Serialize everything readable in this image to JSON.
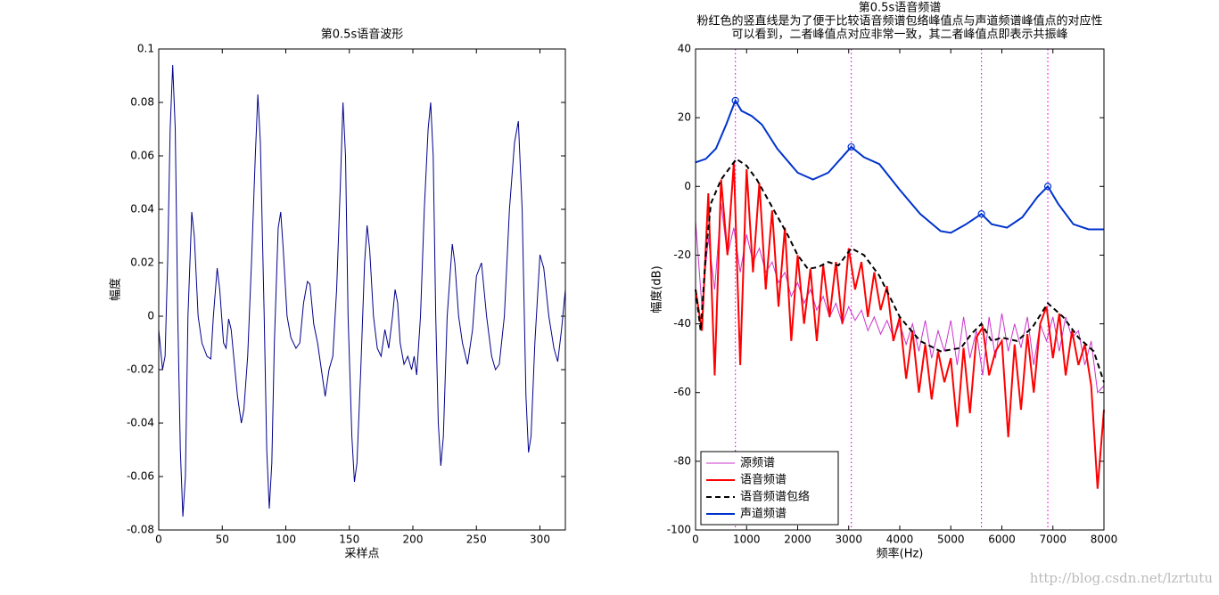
{
  "chart_data": [
    {
      "type": "line",
      "title": [
        "第0.5s语音波形"
      ],
      "xlabel": "采样点",
      "ylabel": "幅度",
      "xlim": [
        0,
        320
      ],
      "xticks": [
        0,
        50,
        100,
        150,
        200,
        250,
        300
      ],
      "ylim": [
        -0.08,
        0.1
      ],
      "yticks": [
        -0.08,
        -0.06,
        -0.04,
        -0.02,
        0,
        0.02,
        0.04,
        0.06,
        0.08,
        0.1
      ],
      "series": [
        {
          "color": "#00008b",
          "width": 1,
          "x": [
            0,
            3,
            5,
            7,
            9,
            11,
            13,
            15,
            17,
            19,
            21,
            23,
            26,
            28,
            31,
            34,
            38,
            41,
            43,
            46,
            48,
            51,
            53,
            55,
            57,
            59,
            62,
            65,
            67,
            70,
            73,
            76,
            78,
            80,
            83,
            85,
            87,
            89,
            91,
            94,
            96,
            98,
            101,
            104,
            108,
            111,
            114,
            117,
            119,
            122,
            125,
            128,
            131,
            134,
            137,
            140,
            143,
            145,
            147,
            149,
            152,
            154,
            156,
            159,
            162,
            164,
            166,
            169,
            172,
            175,
            178,
            181,
            184,
            186,
            188,
            190,
            193,
            196,
            199,
            201,
            203,
            206,
            209,
            212,
            214,
            216,
            218,
            220,
            222,
            224,
            227,
            231,
            233,
            236,
            239,
            243,
            247,
            250,
            254,
            258,
            262,
            265,
            268,
            272,
            276,
            280,
            283,
            286,
            289,
            291,
            293,
            296,
            300,
            303,
            307,
            311,
            314,
            317,
            320
          ],
          "values": [
            -0.005,
            -0.02,
            -0.015,
            0.02,
            0.07,
            0.094,
            0.07,
            0.0,
            -0.05,
            -0.075,
            -0.06,
            0.0,
            0.039,
            0.03,
            0.0,
            -0.01,
            -0.015,
            -0.016,
            0.0,
            0.018,
            0.01,
            -0.01,
            -0.012,
            -0.001,
            -0.005,
            -0.015,
            -0.03,
            -0.04,
            -0.035,
            -0.015,
            0.02,
            0.06,
            0.083,
            0.065,
            0.0,
            -0.05,
            -0.072,
            -0.055,
            -0.01,
            0.033,
            0.039,
            0.025,
            0.0,
            -0.008,
            -0.012,
            -0.01,
            0.005,
            0.013,
            0.012,
            -0.003,
            -0.01,
            -0.02,
            -0.03,
            -0.02,
            -0.015,
            0.01,
            0.05,
            0.08,
            0.06,
            0.0,
            -0.045,
            -0.062,
            -0.055,
            -0.02,
            0.02,
            0.034,
            0.025,
            0.0,
            -0.012,
            -0.015,
            -0.005,
            -0.012,
            0.0,
            0.01,
            0.005,
            -0.01,
            -0.018,
            -0.015,
            -0.02,
            -0.015,
            -0.022,
            0.0,
            0.04,
            0.07,
            0.08,
            0.06,
            0.0,
            -0.04,
            -0.056,
            -0.045,
            0.0,
            0.027,
            0.02,
            0.0,
            -0.01,
            -0.018,
            -0.005,
            0.015,
            0.02,
            0.0,
            -0.015,
            -0.02,
            -0.018,
            0.0,
            0.04,
            0.065,
            0.073,
            0.04,
            -0.03,
            -0.051,
            -0.045,
            -0.01,
            0.023,
            0.018,
            0.0,
            -0.012,
            -0.017,
            -0.005,
            0.01
          ]
        }
      ]
    },
    {
      "type": "line",
      "title": [
        "第0.5s语音频谱",
        "粉红色的竖直线是为了便于比较语音频谱包络峰值点与声道频谱峰值点的对应性",
        "可以看到，二者峰值点对应非常一致，其二者峰值点即表示共振峰"
      ],
      "xlabel": "频率(Hz)",
      "ylabel": "幅度(dB)",
      "xlim": [
        0,
        8000
      ],
      "xticks": [
        0,
        1000,
        2000,
        3000,
        4000,
        5000,
        6000,
        7000,
        8000
      ],
      "ylim": [
        -100,
        40
      ],
      "yticks": [
        -100,
        -80,
        -60,
        -40,
        -20,
        0,
        20,
        40
      ],
      "legend": "lower left",
      "vlines": [
        780,
        3050,
        5600,
        6900
      ],
      "vline_color": "#ff00ff",
      "series": [
        {
          "name": "源频谱",
          "color": "#cc33cc",
          "width": 1,
          "x": [
            0,
            125,
            250,
            375,
            500,
            625,
            750,
            875,
            1000,
            1125,
            1250,
            1375,
            1500,
            1625,
            1750,
            1875,
            2000,
            2125,
            2250,
            2375,
            2500,
            2625,
            2750,
            2875,
            3000,
            3125,
            3250,
            3375,
            3500,
            3625,
            3750,
            3875,
            4000,
            4125,
            4250,
            4375,
            4500,
            4625,
            4750,
            4875,
            5000,
            5125,
            5250,
            5375,
            5500,
            5625,
            5750,
            5875,
            6000,
            6125,
            6250,
            6375,
            6500,
            6625,
            6750,
            6875,
            7000,
            7125,
            7250,
            7375,
            7500,
            7625,
            7750,
            7875,
            8000
          ],
          "values": [
            -10,
            -35,
            -15,
            -30,
            -5,
            -20,
            -12,
            -25,
            -14,
            -22,
            -18,
            -25,
            -22,
            -28,
            -25,
            -32,
            -28,
            -34,
            -30,
            -36,
            -32,
            -38,
            -34,
            -40,
            -35,
            -39,
            -36,
            -42,
            -38,
            -43,
            -39,
            -44,
            -40,
            -46,
            -40,
            -48,
            -39,
            -50,
            -42,
            -48,
            -39,
            -52,
            -38,
            -50,
            -42,
            -55,
            -38,
            -50,
            -37,
            -48,
            -40,
            -47,
            -38,
            -52,
            -40,
            -45,
            -38,
            -48,
            -38,
            -44,
            -42,
            -52,
            -45,
            -60,
            -58
          ]
        },
        {
          "name": "语音频谱",
          "color": "#ff0000",
          "width": 2,
          "x": [
            0,
            125,
            250,
            375,
            500,
            625,
            750,
            875,
            1000,
            1125,
            1250,
            1375,
            1500,
            1625,
            1750,
            1875,
            2000,
            2125,
            2250,
            2375,
            2500,
            2625,
            2750,
            2875,
            3000,
            3125,
            3250,
            3375,
            3500,
            3625,
            3750,
            3875,
            4000,
            4125,
            4250,
            4375,
            4500,
            4625,
            4750,
            4875,
            5000,
            5125,
            5250,
            5375,
            5500,
            5625,
            5750,
            5875,
            6000,
            6125,
            6250,
            6375,
            6500,
            6625,
            6750,
            6875,
            7000,
            7125,
            7250,
            7375,
            7500,
            7625,
            7750,
            7875,
            8000
          ],
          "values": [
            -30,
            -42,
            -2,
            -55,
            2,
            -20,
            7,
            -52,
            5,
            -25,
            1,
            -30,
            -7,
            -35,
            -12,
            -45,
            -20,
            -40,
            -24,
            -45,
            -23,
            -38,
            -22,
            -40,
            -18,
            -30,
            -22,
            -38,
            -25,
            -36,
            -29,
            -45,
            -38,
            -56,
            -42,
            -60,
            -46,
            -62,
            -48,
            -57,
            -50,
            -70,
            -47,
            -66,
            -44,
            -41,
            -55,
            -48,
            -45,
            -73,
            -46,
            -65,
            -43,
            -60,
            -40,
            -35,
            -50,
            -37,
            -55,
            -42,
            -52,
            -46,
            -58,
            -88,
            -65
          ]
        },
        {
          "name": "语音频谱包络",
          "color": "#000000",
          "width": 2,
          "dash": true,
          "x": [
            0,
            100,
            200,
            300,
            500,
            700,
            800,
            1000,
            1200,
            1500,
            1800,
            2000,
            2200,
            2400,
            2600,
            2800,
            3050,
            3300,
            3600,
            4000,
            4400,
            4800,
            5200,
            5400,
            5600,
            5800,
            6000,
            6300,
            6600,
            6900,
            7200,
            7500,
            7800,
            8000
          ],
          "values": [
            -30,
            -42,
            -20,
            -5,
            2,
            6,
            8,
            6,
            2,
            -6,
            -14,
            -20,
            -24,
            -23.5,
            -22,
            -23,
            -18,
            -20,
            -26,
            -38,
            -45,
            -48,
            -47,
            -43,
            -40,
            -45,
            -44,
            -45,
            -41,
            -34,
            -38,
            -44,
            -48,
            -57
          ]
        },
        {
          "name": "声道频谱",
          "color": "#0033cc",
          "width": 2,
          "x": [
            0,
            200,
            400,
            600,
            780,
            900,
            1100,
            1300,
            1600,
            2000,
            2300,
            2600,
            2900,
            3050,
            3300,
            3600,
            4000,
            4400,
            4800,
            5000,
            5300,
            5600,
            5800,
            6100,
            6400,
            6700,
            6900,
            7100,
            7400,
            7700,
            8000
          ],
          "values": [
            7,
            8,
            11,
            18,
            25,
            22,
            20.5,
            18,
            11,
            4,
            2,
            4,
            9,
            11.5,
            8.5,
            6.5,
            -1,
            -8,
            -13,
            -13.5,
            -11,
            -8,
            -11,
            -12,
            -9,
            -3,
            0,
            -5,
            -11,
            -12.5,
            -12.5
          ],
          "peak_x": [
            780,
            3050,
            5600,
            6900
          ],
          "peak_values": [
            25,
            11.5,
            -8,
            0
          ]
        }
      ]
    }
  ],
  "watermark": "http://blog.csdn.net/lzrtutu"
}
